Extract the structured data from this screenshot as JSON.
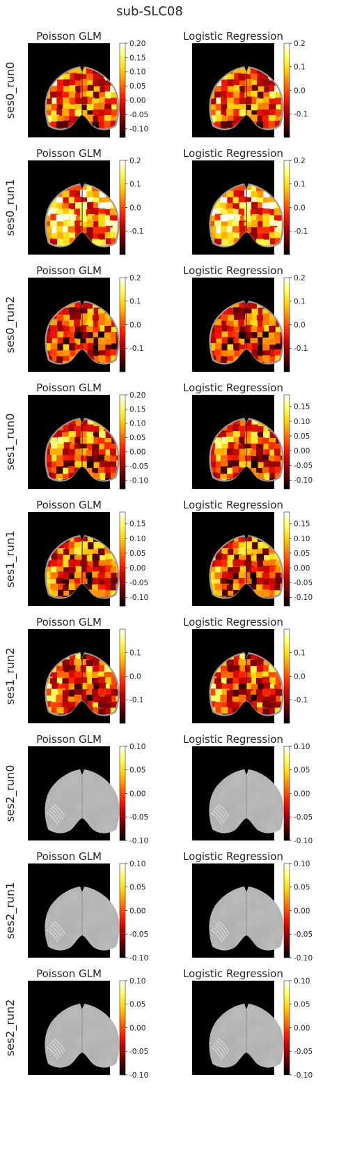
{
  "figure": {
    "title": "sub-SLC08"
  },
  "colormap": {
    "name": "hot",
    "stops": [
      "#000000",
      "#5a0000",
      "#b40000",
      "#ff1e00",
      "#ff7800",
      "#ffd200",
      "#ffff64",
      "#ffffff"
    ]
  },
  "chart_data": [
    {
      "type": "heatmap",
      "row_label": "ses0_run0",
      "title": "Poisson GLM",
      "content": "map",
      "clim": [
        -0.13,
        0.2
      ],
      "ticks": [
        "0.20",
        "0.15",
        "0.10",
        "0.05",
        "0.00",
        "-0.05",
        "-0.10"
      ],
      "tick_values": [
        0.2,
        0.15,
        0.1,
        0.05,
        0.0,
        -0.05,
        -0.1
      ],
      "seed": 11,
      "bias": 0.55
    },
    {
      "type": "heatmap",
      "row_label": "ses0_run0",
      "title": "Logistic Regression",
      "content": "map",
      "clim": [
        -0.2,
        0.2
      ],
      "ticks": [
        "0.2",
        "0.1",
        "0.0",
        "-0.1"
      ],
      "tick_values": [
        0.2,
        0.1,
        0.0,
        -0.1
      ],
      "seed": 11,
      "bias": 0.55
    },
    {
      "type": "heatmap",
      "row_label": "ses0_run1",
      "title": "Poisson GLM",
      "content": "map",
      "clim": [
        -0.2,
        0.2
      ],
      "ticks": [
        "0.2",
        "0.1",
        "0.0",
        "-0.1"
      ],
      "tick_values": [
        0.2,
        0.1,
        0.0,
        -0.1
      ],
      "seed": 23,
      "bias": 0.68
    },
    {
      "type": "heatmap",
      "row_label": "ses0_run1",
      "title": "Logistic Regression",
      "content": "map",
      "clim": [
        -0.2,
        0.2
      ],
      "ticks": [
        "0.2",
        "0.1",
        "0.0",
        "-0.1"
      ],
      "tick_values": [
        0.2,
        0.1,
        0.0,
        -0.1
      ],
      "seed": 23,
      "bias": 0.68
    },
    {
      "type": "heatmap",
      "row_label": "ses0_run2",
      "title": "Poisson GLM",
      "content": "map",
      "clim": [
        -0.2,
        0.2
      ],
      "ticks": [
        "0.2",
        "0.1",
        "0.0",
        "-0.1"
      ],
      "tick_values": [
        0.2,
        0.1,
        0.0,
        -0.1
      ],
      "seed": 37,
      "bias": 0.42
    },
    {
      "type": "heatmap",
      "row_label": "ses0_run2",
      "title": "Logistic Regression",
      "content": "map",
      "clim": [
        -0.2,
        0.2
      ],
      "ticks": [
        "0.2",
        "0.1",
        "0.0",
        "-0.1"
      ],
      "tick_values": [
        0.2,
        0.1,
        0.0,
        -0.1
      ],
      "seed": 37,
      "bias": 0.42
    },
    {
      "type": "heatmap",
      "row_label": "ses1_run0",
      "title": "Poisson GLM",
      "content": "map",
      "clim": [
        -0.13,
        0.2
      ],
      "ticks": [
        "0.20",
        "0.15",
        "0.10",
        "0.05",
        "0.00",
        "-0.05",
        "-0.10"
      ],
      "tick_values": [
        0.2,
        0.15,
        0.1,
        0.05,
        0.0,
        -0.05,
        -0.1
      ],
      "seed": 51,
      "bias": 0.5
    },
    {
      "type": "heatmap",
      "row_label": "ses1_run0",
      "title": "Logistic Regression",
      "content": "map",
      "clim": [
        -0.13,
        0.19
      ],
      "ticks": [
        "0.15",
        "0.10",
        "0.05",
        "0.00",
        "-0.05",
        "-0.10"
      ],
      "tick_values": [
        0.15,
        0.1,
        0.05,
        0.0,
        -0.05,
        -0.1
      ],
      "seed": 51,
      "bias": 0.5
    },
    {
      "type": "heatmap",
      "row_label": "ses1_run1",
      "title": "Poisson GLM",
      "content": "map",
      "clim": [
        -0.13,
        0.19
      ],
      "ticks": [
        "0.15",
        "0.10",
        "0.05",
        "0.00",
        "-0.05",
        "-0.10"
      ],
      "tick_values": [
        0.15,
        0.1,
        0.05,
        0.0,
        -0.05,
        -0.1
      ],
      "seed": 67,
      "bias": 0.47
    },
    {
      "type": "heatmap",
      "row_label": "ses1_run1",
      "title": "Logistic Regression",
      "content": "map",
      "clim": [
        -0.13,
        0.19
      ],
      "ticks": [
        "0.15",
        "0.10",
        "0.05",
        "0.00",
        "-0.05",
        "-0.10"
      ],
      "tick_values": [
        0.15,
        0.1,
        0.05,
        0.0,
        -0.05,
        -0.1
      ],
      "seed": 67,
      "bias": 0.47
    },
    {
      "type": "heatmap",
      "row_label": "ses1_run2",
      "title": "Poisson GLM",
      "content": "map",
      "clim": [
        -0.2,
        0.2
      ],
      "ticks": [
        "0.1",
        "0.0",
        "-0.1"
      ],
      "tick_values": [
        0.1,
        0.0,
        -0.1
      ],
      "seed": 79,
      "bias": 0.5
    },
    {
      "type": "heatmap",
      "row_label": "ses1_run2",
      "title": "Logistic Regression",
      "content": "map",
      "clim": [
        -0.2,
        0.2
      ],
      "ticks": [
        "0.1",
        "0.0",
        "-0.1"
      ],
      "tick_values": [
        0.1,
        0.0,
        -0.1
      ],
      "seed": 79,
      "bias": 0.5
    },
    {
      "type": "heatmap",
      "row_label": "ses2_run0",
      "title": "Poisson GLM",
      "content": "anatomy",
      "clim": [
        -0.1,
        0.1
      ],
      "ticks": [
        "0.10",
        "0.05",
        "0.00",
        "-0.05",
        "-0.10"
      ],
      "tick_values": [
        0.1,
        0.05,
        0.0,
        -0.05,
        -0.1
      ]
    },
    {
      "type": "heatmap",
      "row_label": "ses2_run0",
      "title": "Logistic Regression",
      "content": "anatomy",
      "clim": [
        -0.1,
        0.1
      ],
      "ticks": [
        "0.10",
        "0.05",
        "0.00",
        "-0.05",
        "-0.10"
      ],
      "tick_values": [
        0.1,
        0.05,
        0.0,
        -0.05,
        -0.1
      ]
    },
    {
      "type": "heatmap",
      "row_label": "ses2_run1",
      "title": "Poisson GLM",
      "content": "anatomy",
      "clim": [
        -0.1,
        0.1
      ],
      "ticks": [
        "0.10",
        "0.05",
        "0.00",
        "-0.05",
        "-0.10"
      ],
      "tick_values": [
        0.1,
        0.05,
        0.0,
        -0.05,
        -0.1
      ]
    },
    {
      "type": "heatmap",
      "row_label": "ses2_run1",
      "title": "Logistic Regression",
      "content": "anatomy",
      "clim": [
        -0.1,
        0.1
      ],
      "ticks": [
        "0.10",
        "0.05",
        "0.00",
        "-0.05",
        "-0.10"
      ],
      "tick_values": [
        0.1,
        0.05,
        0.0,
        -0.05,
        -0.1
      ]
    },
    {
      "type": "heatmap",
      "row_label": "ses2_run2",
      "title": "Poisson GLM",
      "content": "anatomy",
      "clim": [
        -0.1,
        0.1
      ],
      "ticks": [
        "0.10",
        "0.05",
        "0.00",
        "-0.05",
        "-0.10"
      ],
      "tick_values": [
        0.1,
        0.05,
        0.0,
        -0.05,
        -0.1
      ]
    },
    {
      "type": "heatmap",
      "row_label": "ses2_run2",
      "title": "Logistic Regression",
      "content": "anatomy",
      "clim": [
        -0.1,
        0.1
      ],
      "ticks": [
        "0.10",
        "0.05",
        "0.00",
        "-0.05",
        "-0.10"
      ],
      "tick_values": [
        0.1,
        0.05,
        0.0,
        -0.05,
        -0.1
      ]
    }
  ]
}
